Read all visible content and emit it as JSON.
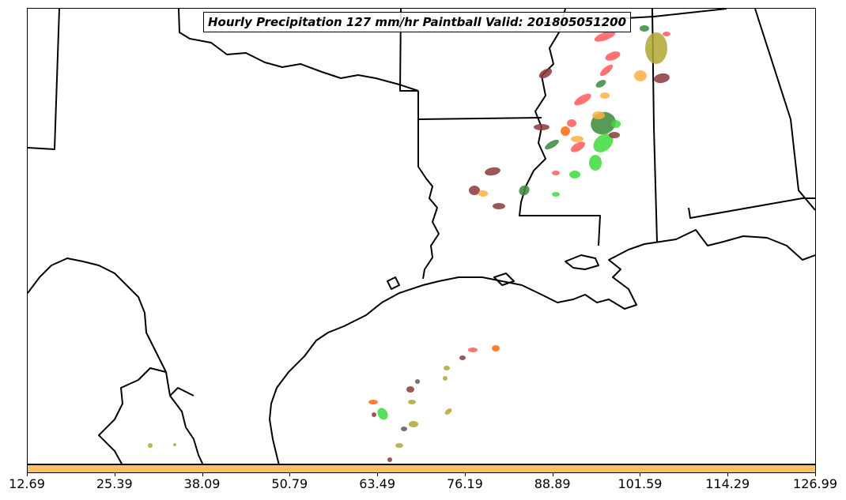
{
  "title": "Hourly Precipitation 127 mm/hr Paintball Valid: 201805051200",
  "colorbar": {
    "color": "#ffc060",
    "ticks": [
      "12.69",
      "25.39",
      "38.09",
      "50.79",
      "63.49",
      "76.19",
      "88.89",
      "101.59",
      "114.29",
      "126.99"
    ]
  },
  "paintball_colors": {
    "red": "#ff5a5a",
    "orange": "#ffb040",
    "dark_orange": "#ff6a10",
    "green": "#3cdc3c",
    "dark_green": "#3a8a3a",
    "olive": "#b0a830",
    "brown": "#8a3a3a",
    "gray": "#5a5a5a"
  }
}
